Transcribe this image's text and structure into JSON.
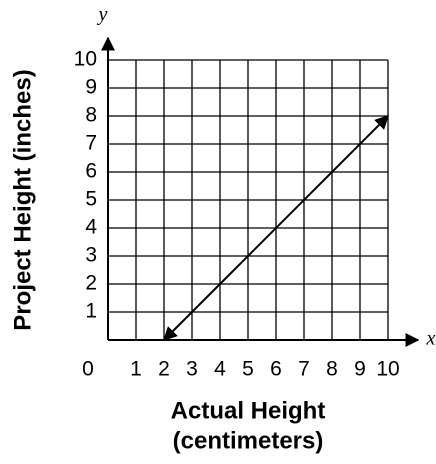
{
  "chart_data": {
    "type": "line",
    "ylabel": "Project Height (inches)",
    "xlabel": [
      "Actual Height",
      "(centimeters)"
    ],
    "x_axis_letter": "x",
    "y_axis_letter": "y",
    "x": [
      2,
      10
    ],
    "values": [
      0,
      8
    ],
    "color": "#000000",
    "xlim": [
      0,
      10
    ],
    "ylim": [
      0,
      10
    ],
    "xticks": [
      0,
      1,
      2,
      3,
      4,
      5,
      6,
      7,
      8,
      9,
      10
    ],
    "yticks": [
      1,
      2,
      3,
      4,
      5,
      6,
      7,
      8,
      9,
      10
    ],
    "grid": true
  }
}
